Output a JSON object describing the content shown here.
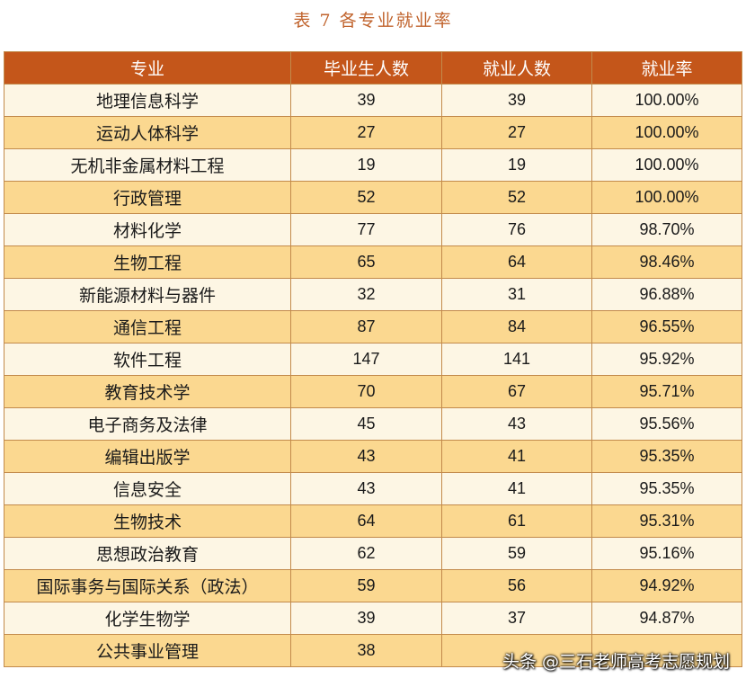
{
  "caption": "表 7   各专业就业率",
  "table": {
    "headers": [
      "专业",
      "毕业生人数",
      "就业人数",
      "就业率"
    ],
    "rows": [
      [
        "地理信息科学",
        "39",
        "39",
        "100.00%"
      ],
      [
        "运动人体科学",
        "27",
        "27",
        "100.00%"
      ],
      [
        "无机非金属材料工程",
        "19",
        "19",
        "100.00%"
      ],
      [
        "行政管理",
        "52",
        "52",
        "100.00%"
      ],
      [
        "材料化学",
        "77",
        "76",
        "98.70%"
      ],
      [
        "生物工程",
        "65",
        "64",
        "98.46%"
      ],
      [
        "新能源材料与器件",
        "32",
        "31",
        "96.88%"
      ],
      [
        "通信工程",
        "87",
        "84",
        "96.55%"
      ],
      [
        "软件工程",
        "147",
        "141",
        "95.92%"
      ],
      [
        "教育技术学",
        "70",
        "67",
        "95.71%"
      ],
      [
        "电子商务及法律",
        "45",
        "43",
        "95.56%"
      ],
      [
        "编辑出版学",
        "43",
        "41",
        "95.35%"
      ],
      [
        "信息安全",
        "43",
        "41",
        "95.35%"
      ],
      [
        "生物技术",
        "64",
        "61",
        "95.31%"
      ],
      [
        "思想政治教育",
        "62",
        "59",
        "95.16%"
      ],
      [
        "国际事务与国际关系（政法）",
        "59",
        "56",
        "94.92%"
      ],
      [
        "化学生物学",
        "39",
        "37",
        "94.87%"
      ],
      [
        "公共事业管理",
        "38",
        "",
        ""
      ]
    ]
  },
  "watermark": "头条 @三石老师高考志愿规划",
  "colors": {
    "header_bg": "#c4561a",
    "row_light": "#fdf6e4",
    "row_alt": "#fbd890",
    "caption": "#c0622b"
  }
}
